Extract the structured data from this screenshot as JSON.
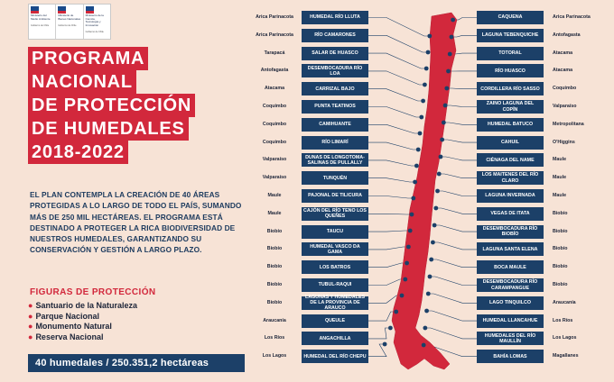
{
  "logos": [
    {
      "text": "Ministerio del Medio Ambiente",
      "base": "Gobierno de Chile"
    },
    {
      "text": "Ministerio de Bienes Nacionales",
      "base": "Gobierno de Chile"
    },
    {
      "text": "Ministerio de la Ciencia, Tecnología y Innovación",
      "base": "Gobierno de Chile"
    }
  ],
  "title": [
    "PROGRAMA",
    "NACIONAL",
    "DE PROTECCIÓN",
    "DE HUMEDALES",
    "2018-2022"
  ],
  "intro": "EL PLAN CONTEMPLA LA CREACIÓN DE 40 ÁREAS PROTEGIDAS A LO LARGO DE TODO EL PAÍS, SUMANDO MÁS DE 250 MIL HECTÁREAS. EL PROGRAMA ESTÁ DESTINADO A PROTEGER LA RICA BIODIVERSIDAD DE NUESTROS HUMEDALES, GARANTIZANDO SU CONSERVACIÓN Y GESTIÓN A LARGO PLAZO.",
  "figures": {
    "title": "FIGURAS DE PROTECCIÓN",
    "items": [
      "Santuario de la Naturaleza",
      "Parque Nacional",
      "Monumento Natural",
      "Reserva Nacional"
    ]
  },
  "summary": "40 humedales / 250.351,2 hectáreas",
  "colors": {
    "background": "#f7e3d6",
    "red": "#d2283c",
    "navy": "#1c4068"
  },
  "left_wetlands": [
    {
      "region": "Arica Parinacota",
      "name": "HUMEDAL RÍO LLUTA"
    },
    {
      "region": "Arica Parinacota",
      "name": "RÍO CAMARONES"
    },
    {
      "region": "Tarapacá",
      "name": "SALAR DE HUASCO"
    },
    {
      "region": "Antofagasta",
      "name": "DESEMBOCADURA RÍO LOA"
    },
    {
      "region": "Atacama",
      "name": "CARRIZAL BAJO"
    },
    {
      "region": "Coquimbo",
      "name": "PUNTA TEATINOS"
    },
    {
      "region": "Coquimbo",
      "name": "CAMIHUANTE"
    },
    {
      "region": "Coquimbo",
      "name": "RÍO LIMARÍ"
    },
    {
      "region": "Valparaíso",
      "name": "DUNAS DE LONGOTOMA-SALINAS DE PULLALLY"
    },
    {
      "region": "Valparaíso",
      "name": "TUNQUÉN"
    },
    {
      "region": "Maule",
      "name": "PAJONAL DE TILICURA"
    },
    {
      "region": "Maule",
      "name": "CAJÓN DEL RÍO TENO LOS QUEÑES"
    },
    {
      "region": "Biobío",
      "name": "TAUCU"
    },
    {
      "region": "Biobío",
      "name": "HUMEDAL VASCO DA GAMA"
    },
    {
      "region": "Biobío",
      "name": "LOS BATROS"
    },
    {
      "region": "Biobío",
      "name": "TUBUL-RAQUI"
    },
    {
      "region": "Biobío",
      "name": "LAGUNAS Y HUMEDALES DE LA PROVINCIA DE ARAUCO"
    },
    {
      "region": "Araucanía",
      "name": "QUEULE"
    },
    {
      "region": "Los Ríos",
      "name": "ANGACHILLA"
    },
    {
      "region": "Los Lagos",
      "name": "HUMEDAL DEL RÍO CHEPU"
    }
  ],
  "right_wetlands": [
    {
      "region": "Arica Parinacota",
      "name": "CAQUENA"
    },
    {
      "region": "Antofagasta",
      "name": "LAGUNA TEBENQUICHE"
    },
    {
      "region": "Atacama",
      "name": "TOTORAL"
    },
    {
      "region": "Atacama",
      "name": "RÍO HUASCO"
    },
    {
      "region": "Coquimbo",
      "name": "CORDILLERA RÍO SASSO"
    },
    {
      "region": "Valparaíso",
      "name": "ZAINO LAGUNA DEL COPÍN"
    },
    {
      "region": "Metropolitana",
      "name": "HUMEDAL BATUCO"
    },
    {
      "region": "O'Higgins",
      "name": "CAHUIL"
    },
    {
      "region": "Maule",
      "name": "CIÉNAGA DEL NAME"
    },
    {
      "region": "Maule",
      "name": "LOS MAITENES DEL RÍO CLARO"
    },
    {
      "region": "Maule",
      "name": "LAGUNA INVERNADA"
    },
    {
      "region": "Biobío",
      "name": "VEGAS DE ITATA"
    },
    {
      "region": "Biobío",
      "name": "DESEMBOCADURA RÍO BIOBÍO"
    },
    {
      "region": "Biobío",
      "name": "LAGUNA SANTA ELENA"
    },
    {
      "region": "Biobío",
      "name": "BOCA MAULE"
    },
    {
      "region": "Biobío",
      "name": "DESEMBOCADURA RÍO CARAMPANGUE"
    },
    {
      "region": "Araucanía",
      "name": "LAGO TINQUILCO"
    },
    {
      "region": "Los Ríos",
      "name": "HUMEDAL LLANCAHUE"
    },
    {
      "region": "Los Lagos",
      "name": "HUMEDALES DEL RÍO MAULLÍN"
    },
    {
      "region": "Magallanes",
      "name": "BAHÍA LOMAS"
    }
  ]
}
